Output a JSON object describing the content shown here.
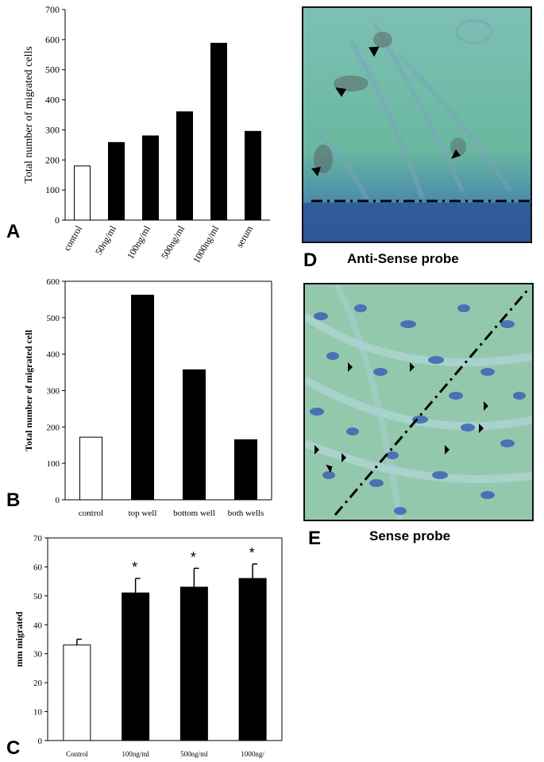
{
  "panels": {
    "A": {
      "letter": "A"
    },
    "B": {
      "letter": "B"
    },
    "C": {
      "letter": "C"
    },
    "D": {
      "letter": "D",
      "caption": "Anti-Sense probe"
    },
    "E": {
      "letter": "E",
      "caption": "Sense probe"
    }
  },
  "colors": {
    "bar_fill": "#000000",
    "control_fill": "#ffffff",
    "micro_d_top": "#5fb5a8",
    "micro_d_bottom": "#2d5a9a",
    "micro_e_bg": "#8fc5a8",
    "nuclei": "#3a5fb0"
  },
  "chart_data": [
    {
      "type": "bar",
      "id": "A",
      "categories": [
        "control",
        "50ng/ml",
        "100ng/ml",
        "500ng/ml",
        "1000ng/ml",
        "serum"
      ],
      "values": [
        180,
        258,
        280,
        360,
        588,
        295
      ],
      "fills": [
        "white",
        "black",
        "black",
        "black",
        "black",
        "black"
      ],
      "ylabel": "Total number of migrated cells",
      "xlabel": "",
      "ylim": [
        0,
        700
      ],
      "yticks": [
        0,
        100,
        200,
        300,
        400,
        500,
        600,
        700
      ],
      "grid": false,
      "tick_label_rotation": "rotated"
    },
    {
      "type": "bar",
      "id": "B",
      "categories": [
        "control",
        "top well",
        "bottom well",
        "both wells"
      ],
      "values": [
        172,
        562,
        357,
        165
      ],
      "fills": [
        "white",
        "black",
        "black",
        "black"
      ],
      "ylabel": "Total number of migrated cell",
      "xlabel": "",
      "ylim": [
        0,
        600
      ],
      "yticks": [
        0,
        100,
        200,
        300,
        400,
        500,
        600
      ],
      "grid": false
    },
    {
      "type": "bar",
      "id": "C",
      "categories": [
        "Control",
        "100ng/ml",
        "500ng/ml",
        "1000ng/"
      ],
      "values": [
        33,
        51,
        53,
        56
      ],
      "errors": [
        2,
        5,
        6.5,
        5
      ],
      "significance": [
        "",
        "*",
        "*",
        "*"
      ],
      "fills": [
        "white",
        "black",
        "black",
        "black"
      ],
      "ylabel": "mm migrated",
      "xlabel": "",
      "ylim": [
        0,
        70
      ],
      "yticks": [
        0,
        10,
        20,
        30,
        40,
        50,
        60,
        70
      ],
      "grid": false
    }
  ]
}
